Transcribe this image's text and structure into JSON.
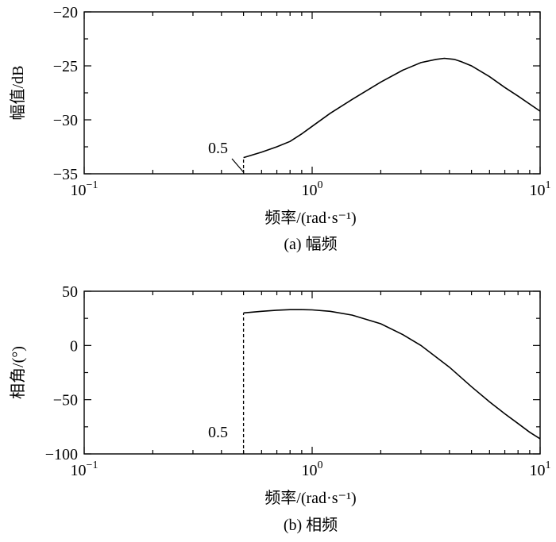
{
  "chart_data": [
    {
      "type": "line",
      "panel": "a",
      "caption": "(a) 幅频",
      "xlabel": "频率/(rad·s⁻¹)",
      "ylabel": "幅值/dB",
      "xscale": "log",
      "xlim": [
        0.1,
        10
      ],
      "ylim": [
        -35,
        -20
      ],
      "xticks": [
        {
          "base": "10",
          "exp": "−1"
        },
        {
          "base": "10",
          "exp": "0"
        },
        {
          "base": "10",
          "exp": "1"
        }
      ],
      "yticks": [
        "−20",
        "−25",
        "−30",
        "−35"
      ],
      "ytick_values": [
        -20,
        -25,
        -30,
        -35
      ],
      "annotation": {
        "text": "0.5",
        "x": 0.5
      },
      "series": [
        {
          "x": [
            0.5,
            0.6,
            0.7,
            0.8,
            0.9,
            1.0,
            1.2,
            1.5,
            2.0,
            2.5,
            3.0,
            3.5,
            3.8,
            4.2,
            4.5,
            5.0,
            6.0,
            7.0,
            8.0,
            10.0
          ],
          "y": [
            -33.5,
            -33.0,
            -32.5,
            -32.0,
            -31.3,
            -30.6,
            -29.4,
            -28.1,
            -26.5,
            -25.4,
            -24.7,
            -24.4,
            -24.3,
            -24.4,
            -24.6,
            -25.0,
            -26.0,
            -27.0,
            -27.8,
            -29.2
          ]
        }
      ]
    },
    {
      "type": "line",
      "panel": "b",
      "caption": "(b) 相频",
      "xlabel": "频率/(rad·s⁻¹)",
      "ylabel": "相角/(°)",
      "xscale": "log",
      "xlim": [
        0.1,
        10
      ],
      "ylim": [
        -100,
        50
      ],
      "xticks": [
        {
          "base": "10",
          "exp": "−1"
        },
        {
          "base": "10",
          "exp": "0"
        },
        {
          "base": "10",
          "exp": "1"
        }
      ],
      "yticks": [
        "50",
        "0",
        "−50",
        "−100"
      ],
      "ytick_values": [
        50,
        0,
        -50,
        -100
      ],
      "annotation": {
        "text": "0.5",
        "x": 0.5
      },
      "series": [
        {
          "x": [
            0.5,
            0.6,
            0.7,
            0.8,
            0.9,
            1.0,
            1.2,
            1.5,
            2.0,
            2.5,
            3.0,
            4.0,
            5.0,
            6.0,
            7.0,
            8.0,
            9.0,
            10.0
          ],
          "y": [
            30,
            31.5,
            32.5,
            33,
            33,
            32.8,
            31.5,
            28,
            20,
            10,
            0,
            -20,
            -38,
            -52,
            -63,
            -72,
            -80,
            -86
          ]
        }
      ]
    }
  ]
}
